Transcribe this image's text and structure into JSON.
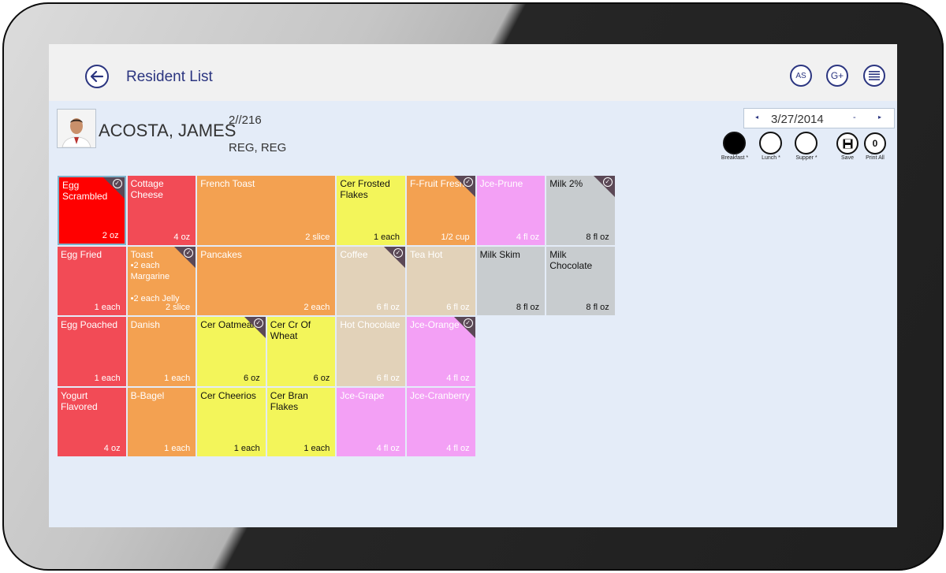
{
  "header": {
    "title": "Resident List",
    "buttons": [
      "AS",
      "G+"
    ]
  },
  "resident": {
    "name": "ACOSTA, JAMES",
    "room": "2//216",
    "diet": "REG, REG"
  },
  "date": {
    "value": "3/27/2014",
    "prev": "◂",
    "next": "▸",
    "minus": "-"
  },
  "meals": [
    {
      "label": "Breakfast *",
      "active": true
    },
    {
      "label": "Lunch *",
      "active": false
    },
    {
      "label": "Supper *",
      "active": false
    }
  ],
  "actions": [
    {
      "label": "Save",
      "icon": "save-icon"
    },
    {
      "label": "Print All",
      "glyph": "0"
    }
  ],
  "colors": {
    "red_selected": "#ff0000",
    "red": "#f24b56",
    "orange": "#f3a151",
    "yellow": "#f3f55a",
    "pink": "#f3a0f5",
    "tan": "#e2d2b9",
    "gray": "#c8cccf",
    "corner": "#5b4856",
    "accent": "#2b3580"
  },
  "menu_items": [
    {
      "name": "Egg Scrambled",
      "qty": "2 oz",
      "col": 0,
      "row": 0,
      "span": 1,
      "color": "red_selected",
      "checked": true,
      "selected": true
    },
    {
      "name": "Cottage Cheese",
      "qty": "4 oz",
      "col": 1,
      "row": 0,
      "span": 1,
      "color": "red"
    },
    {
      "name": "French Toast",
      "qty": "2 slice",
      "col": 2,
      "row": 0,
      "span": 2,
      "color": "orange"
    },
    {
      "name": "Cer Frosted\nFlakes",
      "qty": "1 each",
      "col": 4,
      "row": 0,
      "span": 1,
      "color": "yellow",
      "dark": true
    },
    {
      "name": "F-Fruit Fresh",
      "qty": "1/2 cup",
      "col": 5,
      "row": 0,
      "span": 1,
      "color": "orange",
      "checked": true
    },
    {
      "name": "Jce-Prune",
      "qty": "4 fl oz",
      "col": 6,
      "row": 0,
      "span": 1,
      "color": "pink"
    },
    {
      "name": "Milk  2%",
      "qty": "8 fl oz",
      "col": 7,
      "row": 0,
      "span": 1,
      "color": "gray",
      "dark": true,
      "checked": true
    },
    {
      "name": "Egg Fried",
      "qty": "1 each",
      "col": 0,
      "row": 1,
      "span": 1,
      "color": "red"
    },
    {
      "name": "Toast",
      "notes": [
        "•2 each Margarine",
        "•2 each Jelly"
      ],
      "qty": "2 slice",
      "col": 1,
      "row": 1,
      "span": 1,
      "color": "orange",
      "checked": true
    },
    {
      "name": "Pancakes",
      "qty": "2 each",
      "col": 2,
      "row": 1,
      "span": 2,
      "color": "orange"
    },
    {
      "name": "Coffee",
      "qty": "6 fl oz",
      "col": 4,
      "row": 1,
      "span": 1,
      "color": "tan",
      "checked": true
    },
    {
      "name": "Tea Hot",
      "qty": "6 fl oz",
      "col": 5,
      "row": 1,
      "span": 1,
      "color": "tan"
    },
    {
      "name": "Milk Skim",
      "qty": "8 fl oz",
      "col": 6,
      "row": 1,
      "span": 1,
      "color": "gray",
      "dark": true
    },
    {
      "name": "Milk Chocolate",
      "qty": "8 fl oz",
      "col": 7,
      "row": 1,
      "span": 1,
      "color": "gray",
      "dark": true
    },
    {
      "name": "Egg Poached",
      "qty": "1 each",
      "col": 0,
      "row": 2,
      "span": 1,
      "color": "red"
    },
    {
      "name": "Danish",
      "qty": "1 each",
      "col": 1,
      "row": 2,
      "span": 1,
      "color": "orange"
    },
    {
      "name": "Cer Oatmeal",
      "qty": "6 oz",
      "col": 2,
      "row": 2,
      "span": 1,
      "color": "yellow",
      "dark": true,
      "checked": true
    },
    {
      "name": "Cer Cr Of\nWheat",
      "qty": "6 oz",
      "col": 3,
      "row": 2,
      "span": 1,
      "color": "yellow",
      "dark": true
    },
    {
      "name": "Hot Chocolate",
      "qty": "6 fl oz",
      "col": 4,
      "row": 2,
      "span": 1,
      "color": "tan"
    },
    {
      "name": "Jce-Orange",
      "qty": "4 fl oz",
      "col": 5,
      "row": 2,
      "span": 1,
      "color": "pink",
      "checked": true
    },
    {
      "name": "Yogurt Flavored",
      "qty": "4 oz",
      "col": 0,
      "row": 3,
      "span": 1,
      "color": "red"
    },
    {
      "name": "B-Bagel",
      "qty": "1 each",
      "col": 1,
      "row": 3,
      "span": 1,
      "color": "orange"
    },
    {
      "name": "Cer Cheerios",
      "qty": "1 each",
      "col": 2,
      "row": 3,
      "span": 1,
      "color": "yellow",
      "dark": true
    },
    {
      "name": "Cer Bran\nFlakes",
      "qty": "1 each",
      "col": 3,
      "row": 3,
      "span": 1,
      "color": "yellow",
      "dark": true
    },
    {
      "name": "Jce-Grape",
      "qty": "4 fl oz",
      "col": 4,
      "row": 3,
      "span": 1,
      "color": "pink"
    },
    {
      "name": "Jce-Cranberry",
      "qty": "4 fl oz",
      "col": 5,
      "row": 3,
      "span": 1,
      "color": "pink"
    }
  ]
}
